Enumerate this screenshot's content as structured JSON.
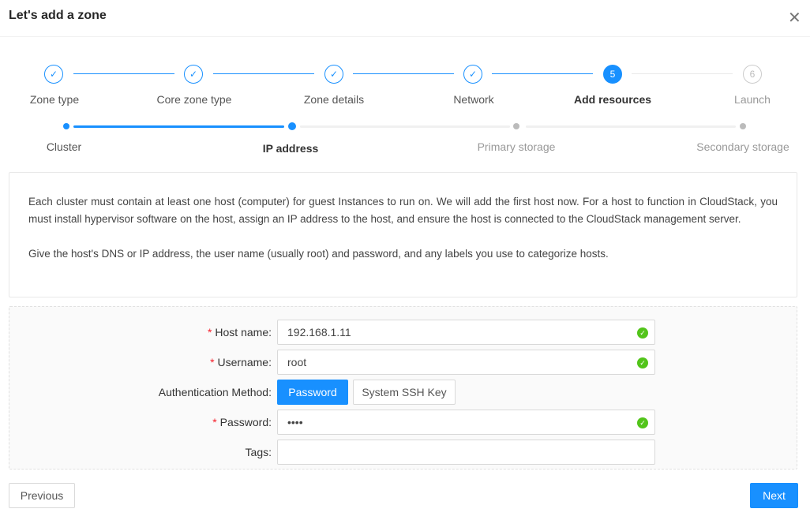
{
  "dialog": {
    "title": "Let's add a zone",
    "close_icon": "close-icon"
  },
  "steps": [
    {
      "label": "Zone type",
      "status": "finish",
      "icon": "check-icon"
    },
    {
      "label": "Core zone type",
      "status": "finish",
      "icon": "check-icon"
    },
    {
      "label": "Zone details",
      "status": "finish",
      "icon": "check-icon"
    },
    {
      "label": "Network",
      "status": "finish",
      "icon": "check-icon"
    },
    {
      "label": "Add resources",
      "status": "process",
      "number": "5"
    },
    {
      "label": "Launch",
      "status": "wait",
      "number": "6"
    }
  ],
  "substeps": [
    {
      "label": "Cluster",
      "status": "finish"
    },
    {
      "label": "IP address",
      "status": "process"
    },
    {
      "label": "Primary storage",
      "status": "wait"
    },
    {
      "label": "Secondary storage",
      "status": "wait"
    }
  ],
  "description": {
    "p1": "Each cluster must contain at least one host (computer) for guest Instances to run on. We will add the first host now. For a host to function in CloudStack, you must install hypervisor software on the host, assign an IP address to the host, and ensure the host is connected to the CloudStack management server.",
    "p2": "Give the host's DNS or IP address, the user name (usually root) and password, and any labels you use to categorize hosts."
  },
  "form": {
    "host_name": {
      "label": "Host name",
      "value": "192.168.1.11",
      "required": true
    },
    "username": {
      "label": "Username",
      "value": "root",
      "required": true
    },
    "auth_method": {
      "label": "Authentication Method",
      "options": [
        "Password",
        "System SSH Key"
      ],
      "selected": "Password"
    },
    "password": {
      "label": "Password",
      "value": "••••",
      "required": true
    },
    "tags": {
      "label": "Tags",
      "value": ""
    }
  },
  "footer": {
    "previous": "Previous",
    "next": "Next"
  },
  "colors": {
    "primary": "#1890ff",
    "success": "#52c41a",
    "required": "#f5222d"
  }
}
